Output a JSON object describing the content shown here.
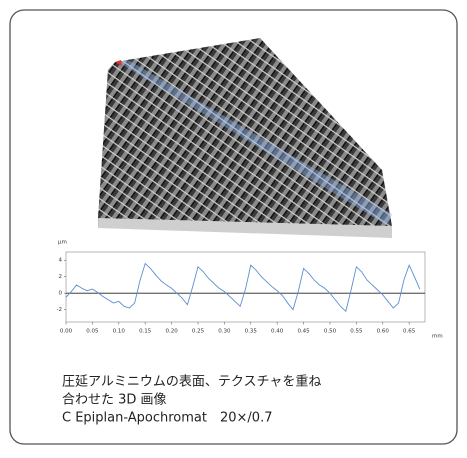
{
  "chart_data": {
    "type": "line",
    "ylabel": "μm",
    "xlabel": "mm",
    "x": [
      0.0,
      0.01,
      0.02,
      0.03,
      0.04,
      0.05,
      0.06,
      0.07,
      0.08,
      0.09,
      0.1,
      0.11,
      0.12,
      0.13,
      0.14,
      0.15,
      0.16,
      0.17,
      0.18,
      0.19,
      0.2,
      0.21,
      0.22,
      0.23,
      0.24,
      0.25,
      0.26,
      0.27,
      0.28,
      0.29,
      0.3,
      0.31,
      0.32,
      0.33,
      0.34,
      0.35,
      0.36,
      0.37,
      0.38,
      0.39,
      0.4,
      0.41,
      0.42,
      0.43,
      0.44,
      0.45,
      0.46,
      0.47,
      0.48,
      0.49,
      0.5,
      0.51,
      0.52,
      0.53,
      0.54,
      0.55,
      0.56,
      0.57,
      0.58,
      0.59,
      0.6,
      0.61,
      0.62,
      0.63,
      0.64,
      0.65,
      0.66,
      0.67
    ],
    "series": [
      {
        "color": "#5b8fd0",
        "values": [
          -0.5,
          0.2,
          1.0,
          0.6,
          0.3,
          0.5,
          0.1,
          -0.4,
          -0.8,
          -1.2,
          -1.0,
          -1.6,
          -1.8,
          -1.2,
          1.5,
          3.6,
          3.0,
          2.2,
          1.5,
          1.0,
          0.6,
          0.0,
          -0.6,
          -1.4,
          0.8,
          3.2,
          2.6,
          1.8,
          1.2,
          0.6,
          0.2,
          -0.4,
          -1.0,
          -1.6,
          0.5,
          3.4,
          2.8,
          2.0,
          1.4,
          0.8,
          0.3,
          -0.3,
          -1.2,
          -2.0,
          0.2,
          3.0,
          2.4,
          1.6,
          1.0,
          0.6,
          0.0,
          -0.8,
          -1.6,
          -2.2,
          0.4,
          3.2,
          2.6,
          1.6,
          1.0,
          0.4,
          -0.2,
          -1.0,
          -1.8,
          -1.2,
          1.6,
          3.4,
          2.0,
          0.5
        ]
      }
    ],
    "xlim": [
      0,
      0.68
    ],
    "ylim": [
      -3.5,
      5
    ],
    "xticks": [
      {
        "value": 0,
        "label": "0.00"
      },
      {
        "value": 0.05,
        "label": "0.05"
      },
      {
        "value": 0.1,
        "label": "0.10"
      },
      {
        "value": 0.15,
        "label": "0.15"
      },
      {
        "value": 0.2,
        "label": "0.20"
      },
      {
        "value": 0.25,
        "label": "0.25"
      },
      {
        "value": 0.3,
        "label": "0.30"
      },
      {
        "value": 0.35,
        "label": "0.35"
      },
      {
        "value": 0.4,
        "label": "0.40"
      },
      {
        "value": 0.45,
        "label": "0.45"
      },
      {
        "value": 0.5,
        "label": "0.50"
      },
      {
        "value": 0.55,
        "label": "0.55"
      },
      {
        "value": 0.6,
        "label": "0.60"
      },
      {
        "value": 0.65,
        "label": "0.65"
      }
    ],
    "yticks": [
      4,
      2,
      0,
      -2
    ]
  },
  "caption": {
    "lines": [
      "圧延アルミニウムの表面、テクスチャを重ね",
      "合わせた 3D 画像",
      "C Epiplan-Apochromat　20×/0.7"
    ]
  }
}
